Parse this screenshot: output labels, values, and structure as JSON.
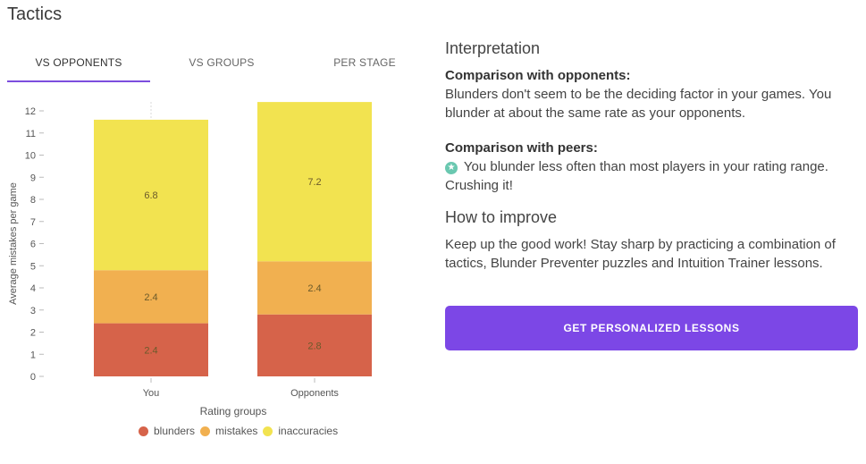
{
  "page": {
    "title": "Tactics"
  },
  "tabs": [
    {
      "label": "VS OPPONENTS",
      "active": true
    },
    {
      "label": "VS GROUPS",
      "active": false
    },
    {
      "label": "PER STAGE",
      "active": false
    }
  ],
  "colors": {
    "blunders": "#d6634a",
    "mistakes": "#f1b050",
    "inaccuracies": "#f2e350",
    "accent": "#7c47e6"
  },
  "chart_data": {
    "type": "bar",
    "stacked": true,
    "categories": [
      "You",
      "Opponents"
    ],
    "series": [
      {
        "name": "blunders",
        "values": [
          2.4,
          2.8
        ],
        "labels": [
          "2.4",
          "2.8"
        ]
      },
      {
        "name": "mistakes",
        "values": [
          2.4,
          2.4
        ],
        "labels": [
          "2.4",
          "2.4"
        ]
      },
      {
        "name": "inaccuracies",
        "values": [
          6.8,
          7.2
        ],
        "labels": [
          "6.8",
          "7.2"
        ]
      }
    ],
    "xlabel": "Rating groups",
    "ylabel": "Average mistakes per game",
    "ylim": [
      0,
      12
    ],
    "yticks": [
      "0",
      "1",
      "2",
      "3",
      "4",
      "5",
      "6",
      "7",
      "8",
      "9",
      "10",
      "11",
      "12"
    ],
    "legend": "bottom",
    "grid": false
  },
  "legend": [
    {
      "label": "blunders"
    },
    {
      "label": "mistakes"
    },
    {
      "label": "inaccuracies"
    }
  ],
  "interpretation": {
    "heading": "Interpretation",
    "opponents_title": "Comparison with opponents:",
    "opponents_text": "Blunders don't seem to be the deciding factor in your games. You blunder at about the same rate as your opponents.",
    "peers_title": "Comparison with peers:",
    "peers_icon": "star-badge-icon",
    "peers_text": "You blunder less often than most players in your rating range. Crushing it!"
  },
  "improve": {
    "heading": "How to improve",
    "text": "Keep up the good work! Stay sharp by practicing a combination of tactics, Blunder Preventer puzzles and Intuition Trainer lessons."
  },
  "cta": {
    "label": "GET PERSONALIZED LESSONS"
  }
}
